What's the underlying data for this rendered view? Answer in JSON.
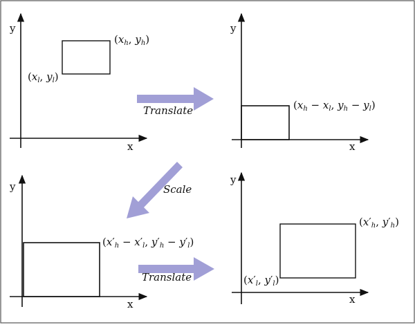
{
  "colors": {
    "arrow": "#a19fd6",
    "border": "#555555",
    "ink": "#111111"
  },
  "axes": {
    "x_label": "x",
    "y_label": "y"
  },
  "operations": {
    "translate_1": "Translate",
    "scale": "Scale",
    "translate_2": "Translate"
  },
  "panels": {
    "top_left": {
      "corner_high": "(x_h, y_h)",
      "corner_low": "(x_l, y_l)"
    },
    "top_right": {
      "corner": "(x_h − x_l, y_h − y_l)"
    },
    "bottom_left": {
      "corner": "(x′_h − x′_l, y′_h − y′_l)"
    },
    "bottom_right": {
      "corner_high": "(x′_h, y′_h)",
      "corner_low": "(x′_l, y′_l)"
    }
  }
}
